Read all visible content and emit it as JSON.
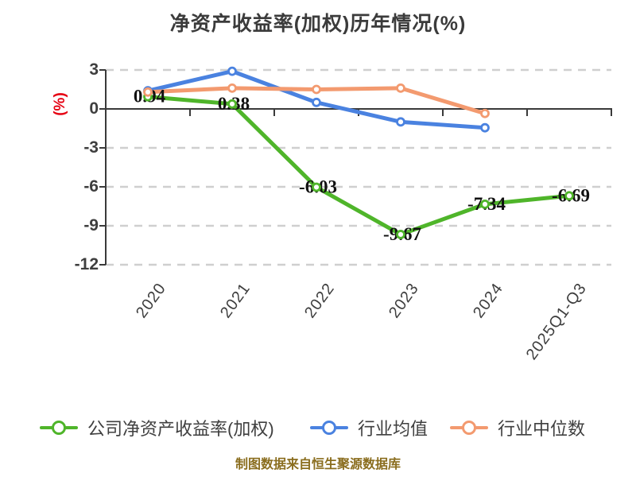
{
  "title": "净资产收益率(加权)历年情况(%)",
  "footer": {
    "source_note": "制图数据来自恒生聚源数据库"
  },
  "colors": {
    "company_line": "#4fb52a",
    "industry_avg_line": "#4a82e0",
    "industry_median_line": "#f39a6f",
    "axis_line": "#3a3a3a",
    "grid_line": "#cfcfcf",
    "tick_text": "#3e3e3e",
    "data_label_text": "#111111",
    "y_axis_name_text": "#e60012",
    "title_text": "#3b3b3b",
    "legend_text": "#3f3f3f",
    "footer_text": "#8a6d1e",
    "marker_fill": "#ffffff",
    "background": "#ffffff"
  },
  "chart_data": {
    "type": "line",
    "title": "净资产收益率(加权)历年情况(%)",
    "ylabel": "(%)",
    "xlabel": "",
    "categories": [
      "2020",
      "2021",
      "2022",
      "2023",
      "2024",
      "2025Q1-Q3"
    ],
    "y_ticks": [
      3,
      0,
      -3,
      -6,
      -9,
      -12
    ],
    "ylim": [
      -12,
      3
    ],
    "grid": "horizontal-dashed",
    "legend_position": "bottom",
    "x_axis_at_zero": true,
    "series": [
      {
        "name": "公司净资产收益率(加权)",
        "color": "#4fb52a",
        "values": [
          0.94,
          0.38,
          -6.03,
          -9.67,
          -7.34,
          -6.69
        ],
        "data_labels": [
          "0.94",
          "0.38",
          "-6.03",
          "-9.67",
          "-7.34",
          "-6.69"
        ]
      },
      {
        "name": "行业均值",
        "color": "#4a82e0",
        "values": [
          1.4,
          2.9,
          0.5,
          -1.0,
          -1.45,
          null
        ],
        "data_labels": null
      },
      {
        "name": "行业中位数",
        "color": "#f39a6f",
        "values": [
          1.3,
          1.6,
          1.5,
          1.6,
          -0.35,
          null
        ],
        "data_labels": null
      }
    ]
  }
}
